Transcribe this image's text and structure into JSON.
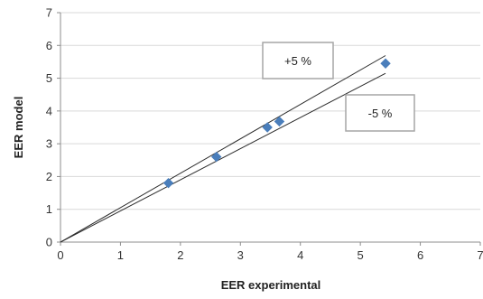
{
  "chart_data": {
    "type": "scatter",
    "xlabel": "EER experimental",
    "ylabel": "EER model",
    "xlim": [
      0,
      7
    ],
    "ylim": [
      0,
      7
    ],
    "x_ticks": [
      0,
      1,
      2,
      3,
      4,
      5,
      6,
      7
    ],
    "y_ticks": [
      0,
      1,
      2,
      3,
      4,
      5,
      6,
      7
    ],
    "grid": "horizontal",
    "series": [
      {
        "marker": "diamond",
        "color": "#4a7ebb",
        "points": [
          {
            "x": 1.8,
            "y": 1.8
          },
          {
            "x": 2.6,
            "y": 2.6
          },
          {
            "x": 3.45,
            "y": 3.5
          },
          {
            "x": 3.65,
            "y": 3.68
          },
          {
            "x": 5.42,
            "y": 5.45
          }
        ]
      }
    ],
    "reference_lines": [
      {
        "label": "+5 %",
        "slope": 1.05,
        "x_range": [
          0,
          5.42
        ]
      },
      {
        "label": "-5 %",
        "slope": 0.95,
        "x_range": [
          0,
          5.42
        ]
      }
    ],
    "annotations": [
      "+5 %",
      "-5 %"
    ]
  }
}
